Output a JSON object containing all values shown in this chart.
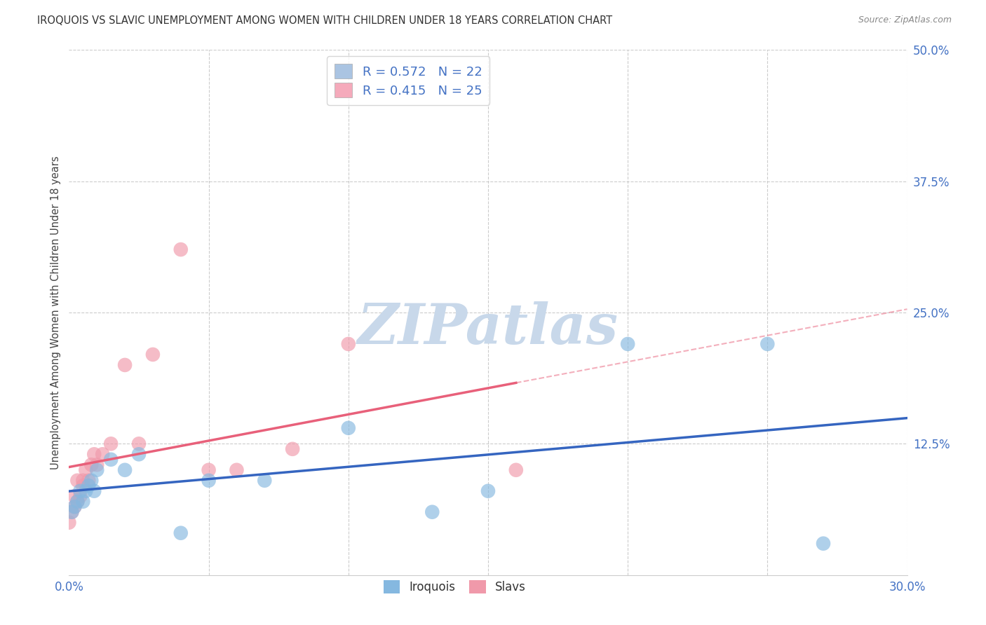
{
  "title": "IROQUOIS VS SLAVIC UNEMPLOYMENT AMONG WOMEN WITH CHILDREN UNDER 18 YEARS CORRELATION CHART",
  "source": "Source: ZipAtlas.com",
  "ylabel": "Unemployment Among Women with Children Under 18 years",
  "xlim": [
    0.0,
    0.3
  ],
  "ylim": [
    0.0,
    0.5
  ],
  "xticks": [
    0.0,
    0.05,
    0.1,
    0.15,
    0.2,
    0.25,
    0.3
  ],
  "yticks": [
    0.0,
    0.125,
    0.25,
    0.375,
    0.5
  ],
  "legend1_label": "R = 0.572   N = 22",
  "legend2_label": "R = 0.415   N = 25",
  "legend1_color": "#aac4e2",
  "legend2_color": "#f5aabb",
  "iroquois_color": "#85b8e0",
  "slavs_color": "#f099aa",
  "iroquois_line_color": "#3565c0",
  "slavs_line_color": "#e8607a",
  "label_color": "#4472c4",
  "grid_color": "#cccccc",
  "watermark": "ZIPatlas",
  "watermark_color": "#c8d8ea",
  "iroquois_x": [
    0.001,
    0.002,
    0.003,
    0.004,
    0.005,
    0.006,
    0.007,
    0.008,
    0.009,
    0.01,
    0.015,
    0.02,
    0.025,
    0.04,
    0.05,
    0.07,
    0.1,
    0.13,
    0.15,
    0.2,
    0.25,
    0.27
  ],
  "iroquois_y": [
    0.06,
    0.065,
    0.07,
    0.08,
    0.07,
    0.08,
    0.085,
    0.09,
    0.08,
    0.1,
    0.11,
    0.1,
    0.115,
    0.04,
    0.09,
    0.09,
    0.14,
    0.06,
    0.08,
    0.22,
    0.22,
    0.03
  ],
  "slavs_x": [
    0.0,
    0.001,
    0.002,
    0.002,
    0.003,
    0.003,
    0.004,
    0.005,
    0.005,
    0.006,
    0.007,
    0.008,
    0.009,
    0.01,
    0.012,
    0.015,
    0.02,
    0.025,
    0.03,
    0.04,
    0.05,
    0.06,
    0.08,
    0.1,
    0.16
  ],
  "slavs_y": [
    0.05,
    0.06,
    0.065,
    0.075,
    0.07,
    0.09,
    0.075,
    0.09,
    0.085,
    0.1,
    0.09,
    0.105,
    0.115,
    0.105,
    0.115,
    0.125,
    0.2,
    0.125,
    0.21,
    0.31,
    0.1,
    0.1,
    0.12,
    0.22,
    0.1
  ],
  "iroquois_line": [
    0.0,
    0.3,
    0.04,
    0.2
  ],
  "slavs_line": [
    0.0,
    0.16,
    0.09,
    0.32
  ]
}
